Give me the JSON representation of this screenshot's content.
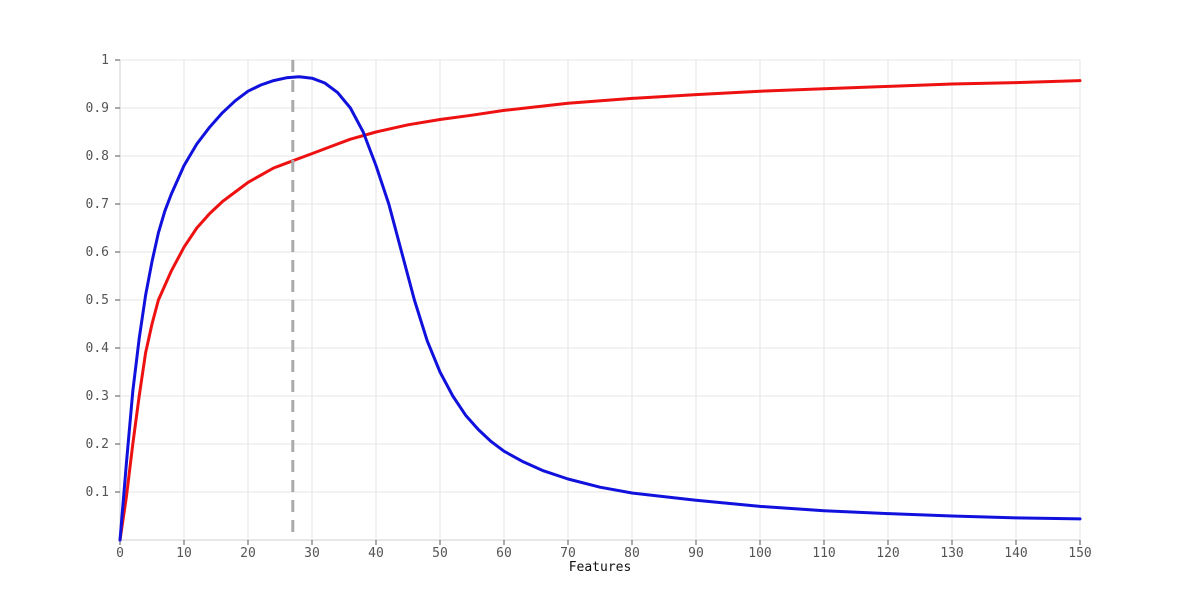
{
  "chart_data": {
    "type": "line",
    "title": "",
    "xlabel": "Features",
    "ylabel": "",
    "xlim": [
      0,
      150
    ],
    "ylim": [
      0,
      1
    ],
    "x_ticks": [
      0,
      10,
      20,
      30,
      40,
      50,
      60,
      70,
      80,
      90,
      100,
      110,
      120,
      130,
      140,
      150
    ],
    "x_tick_labels": [
      "0",
      "10",
      "20",
      "30",
      "40",
      "50",
      "60",
      "70",
      "80",
      "90",
      "100",
      "110",
      "120",
      "130",
      "140",
      "150"
    ],
    "y_ticks": [
      0.1,
      0.2,
      0.3,
      0.4,
      0.5,
      0.6,
      0.7,
      0.8,
      0.9,
      1
    ],
    "y_tick_labels": [
      "0.1",
      "0.2",
      "0.3",
      "0.4",
      "0.5",
      "0.6",
      "0.7",
      "0.8",
      "0.9",
      "1"
    ],
    "grid": true,
    "legend": "none",
    "series": [
      {
        "color": "#ee1111",
        "x": [
          0,
          1,
          2,
          3,
          4,
          5,
          6,
          7,
          8,
          10,
          12,
          14,
          16,
          18,
          20,
          22,
          24,
          26,
          28,
          30,
          33,
          36,
          40,
          45,
          50,
          55,
          60,
          70,
          80,
          90,
          100,
          110,
          120,
          130,
          140,
          150
        ],
        "y": [
          0,
          0.09,
          0.2,
          0.3,
          0.39,
          0.45,
          0.5,
          0.53,
          0.56,
          0.61,
          0.65,
          0.68,
          0.705,
          0.725,
          0.745,
          0.76,
          0.775,
          0.785,
          0.795,
          0.805,
          0.82,
          0.835,
          0.85,
          0.865,
          0.876,
          0.885,
          0.895,
          0.91,
          0.92,
          0.928,
          0.935,
          0.94,
          0.945,
          0.95,
          0.953,
          0.957
        ]
      },
      {
        "color": "#1111dd",
        "x": [
          0,
          1,
          2,
          3,
          4,
          5,
          6,
          7,
          8,
          10,
          12,
          14,
          16,
          18,
          20,
          22,
          24,
          26,
          28,
          30,
          32,
          34,
          36,
          38,
          40,
          42,
          44,
          46,
          48,
          50,
          52,
          54,
          56,
          58,
          60,
          63,
          66,
          70,
          75,
          80,
          90,
          100,
          110,
          120,
          130,
          140,
          150
        ],
        "y": [
          0,
          0.16,
          0.31,
          0.42,
          0.51,
          0.58,
          0.64,
          0.685,
          0.72,
          0.78,
          0.825,
          0.86,
          0.89,
          0.915,
          0.935,
          0.948,
          0.957,
          0.963,
          0.965,
          0.962,
          0.952,
          0.932,
          0.9,
          0.85,
          0.78,
          0.7,
          0.6,
          0.5,
          0.415,
          0.35,
          0.3,
          0.26,
          0.23,
          0.205,
          0.185,
          0.163,
          0.145,
          0.127,
          0.11,
          0.098,
          0.083,
          0.07,
          0.061,
          0.055,
          0.05,
          0.046,
          0.044
        ]
      }
    ],
    "reference_line": {
      "x": 27,
      "color": "#aaaaaa",
      "style": "dashed"
    }
  }
}
